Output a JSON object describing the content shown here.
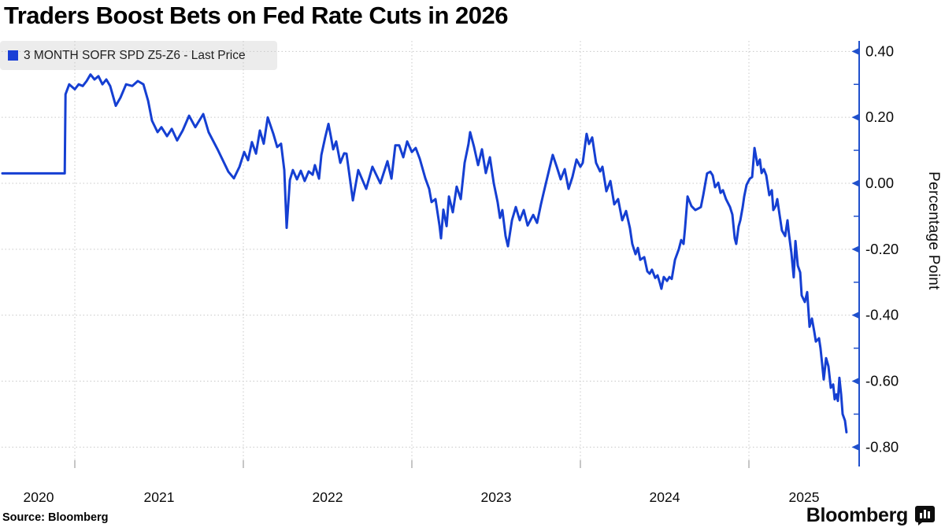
{
  "header": {
    "title": "Traders Boost Bets on Fed Rate Cuts in 2026"
  },
  "legend": {
    "label": "3 MONTH SOFR SPD Z5-Z6 - Last Price",
    "swatch_color": "#1a3fd6"
  },
  "footer": {
    "source": "Source: Bloomberg",
    "brand": "Bloomberg",
    "brand_icon": "bloomberg-bars-icon"
  },
  "colors": {
    "line": "#153fd2",
    "axis": "#2050cc",
    "grid": "#c8c8c8",
    "tick_label": "#0a0a0a",
    "x_tick": "#8c8c8c",
    "legend_bg": "#ececec"
  },
  "chart_data": {
    "type": "line",
    "title": "Traders Boost Bets on Fed Rate Cuts in 2026",
    "xlabel": "",
    "ylabel": "Percentage Point",
    "legend_position": "top-left",
    "grid": "dashed",
    "xlim": [
      2020.57,
      2025.654
    ],
    "ylim": [
      -0.85,
      0.45
    ],
    "x_tick_years": [
      2020,
      2021,
      2022,
      2023,
      2024,
      2025
    ],
    "y_ticks_major": [
      0.4,
      0.2,
      0.0,
      -0.2,
      -0.4,
      -0.6,
      -0.8
    ],
    "y_ticks_minor": [
      0.3,
      0.1,
      -0.1,
      -0.3,
      -0.5,
      -0.7
    ],
    "series": [
      {
        "name": "3 MONTH SOFR SPD Z5-Z6 - Last Price",
        "color": "#153fd2",
        "points": [
          [
            2020.57,
            0.03
          ],
          [
            2020.94,
            0.03
          ],
          [
            2020.945,
            0.27
          ],
          [
            2020.967,
            0.3
          ],
          [
            2021.0,
            0.285
          ],
          [
            2021.023,
            0.3
          ],
          [
            2021.047,
            0.295
          ],
          [
            2021.07,
            0.31
          ],
          [
            2021.093,
            0.33
          ],
          [
            2021.117,
            0.315
          ],
          [
            2021.14,
            0.325
          ],
          [
            2021.164,
            0.3
          ],
          [
            2021.187,
            0.315
          ],
          [
            2021.21,
            0.295
          ],
          [
            2021.243,
            0.235
          ],
          [
            2021.271,
            0.26
          ],
          [
            2021.304,
            0.3
          ],
          [
            2021.341,
            0.295
          ],
          [
            2021.374,
            0.31
          ],
          [
            2021.407,
            0.3
          ],
          [
            2021.435,
            0.25
          ],
          [
            2021.458,
            0.19
          ],
          [
            2021.491,
            0.155
          ],
          [
            2021.514,
            0.17
          ],
          [
            2021.547,
            0.143
          ],
          [
            2021.575,
            0.165
          ],
          [
            2021.607,
            0.13
          ],
          [
            2021.64,
            0.16
          ],
          [
            2021.678,
            0.205
          ],
          [
            2021.715,
            0.17
          ],
          [
            2021.762,
            0.21
          ],
          [
            2021.794,
            0.155
          ],
          [
            2021.85,
            0.1
          ],
          [
            2021.911,
            0.035
          ],
          [
            2021.944,
            0.015
          ],
          [
            2021.977,
            0.05
          ],
          [
            2022.005,
            0.095
          ],
          [
            2022.028,
            0.07
          ],
          [
            2022.051,
            0.125
          ],
          [
            2022.075,
            0.09
          ],
          [
            2022.098,
            0.16
          ],
          [
            2022.121,
            0.12
          ],
          [
            2022.145,
            0.2
          ],
          [
            2022.178,
            0.15
          ],
          [
            2022.201,
            0.11
          ],
          [
            2022.224,
            0.12
          ],
          [
            2022.243,
            0.04
          ],
          [
            2022.257,
            -0.135
          ],
          [
            2022.276,
            0.01
          ],
          [
            2022.294,
            0.04
          ],
          [
            2022.318,
            0.012
          ],
          [
            2022.341,
            0.038
          ],
          [
            2022.364,
            0.007
          ],
          [
            2022.388,
            0.036
          ],
          [
            2022.411,
            0.026
          ],
          [
            2022.425,
            0.055
          ],
          [
            2022.449,
            0.014
          ],
          [
            2022.463,
            0.086
          ],
          [
            2022.486,
            0.14
          ],
          [
            2022.505,
            0.18
          ],
          [
            2022.519,
            0.143
          ],
          [
            2022.533,
            0.103
          ],
          [
            2022.551,
            0.127
          ],
          [
            2022.575,
            0.062
          ],
          [
            2022.598,
            0.091
          ],
          [
            2022.612,
            0.09
          ],
          [
            2022.631,
            0.02
          ],
          [
            2022.65,
            -0.052
          ],
          [
            2022.682,
            0.04
          ],
          [
            2022.729,
            -0.017
          ],
          [
            2022.766,
            0.05
          ],
          [
            2022.813,
            0.0
          ],
          [
            2022.855,
            0.067
          ],
          [
            2022.879,
            0.014
          ],
          [
            2022.902,
            0.115
          ],
          [
            2022.925,
            0.115
          ],
          [
            2022.949,
            0.079
          ],
          [
            2022.972,
            0.127
          ],
          [
            2023.0,
            0.095
          ],
          [
            2023.023,
            0.107
          ],
          [
            2023.047,
            0.074
          ],
          [
            2023.08,
            0.015
          ],
          [
            2023.103,
            -0.017
          ],
          [
            2023.117,
            -0.057
          ],
          [
            2023.14,
            -0.048
          ],
          [
            2023.164,
            -0.128
          ],
          [
            2023.173,
            -0.167
          ],
          [
            2023.187,
            -0.08
          ],
          [
            2023.206,
            -0.13
          ],
          [
            2023.22,
            -0.04
          ],
          [
            2023.243,
            -0.088
          ],
          [
            2023.266,
            -0.01
          ],
          [
            2023.29,
            -0.048
          ],
          [
            2023.313,
            0.062
          ],
          [
            2023.336,
            0.119
          ],
          [
            2023.346,
            0.155
          ],
          [
            2023.369,
            0.11
          ],
          [
            2023.393,
            0.055
          ],
          [
            2023.416,
            0.103
          ],
          [
            2023.439,
            0.031
          ],
          [
            2023.463,
            0.079
          ],
          [
            2023.486,
            0.0
          ],
          [
            2023.509,
            -0.057
          ],
          [
            2023.523,
            -0.105
          ],
          [
            2023.537,
            -0.081
          ],
          [
            2023.556,
            -0.16
          ],
          [
            2023.57,
            -0.191
          ],
          [
            2023.594,
            -0.112
          ],
          [
            2023.617,
            -0.072
          ],
          [
            2023.64,
            -0.112
          ],
          [
            2023.664,
            -0.081
          ],
          [
            2023.687,
            -0.128
          ],
          [
            2023.72,
            -0.096
          ],
          [
            2023.743,
            -0.12
          ],
          [
            2023.766,
            -0.064
          ],
          [
            2023.78,
            -0.033
          ],
          [
            2023.813,
            0.038
          ],
          [
            2023.836,
            0.086
          ],
          [
            2023.86,
            0.05
          ],
          [
            2023.883,
            0.012
          ],
          [
            2023.907,
            0.043
          ],
          [
            2023.93,
            -0.017
          ],
          [
            2023.953,
            0.019
          ],
          [
            2023.977,
            0.072
          ],
          [
            2024.0,
            0.05
          ],
          [
            2024.014,
            0.062
          ],
          [
            2024.037,
            0.15
          ],
          [
            2024.051,
            0.119
          ],
          [
            2024.07,
            0.139
          ],
          [
            2024.093,
            0.062
          ],
          [
            2024.117,
            0.036
          ],
          [
            2024.131,
            0.05
          ],
          [
            2024.154,
            -0.024
          ],
          [
            2024.178,
            0.007
          ],
          [
            2024.201,
            -0.064
          ],
          [
            2024.224,
            -0.048
          ],
          [
            2024.248,
            -0.112
          ],
          [
            2024.271,
            -0.084
          ],
          [
            2024.294,
            -0.136
          ],
          [
            2024.308,
            -0.184
          ],
          [
            2024.327,
            -0.215
          ],
          [
            2024.341,
            -0.196
          ],
          [
            2024.355,
            -0.232
          ],
          [
            2024.379,
            -0.224
          ],
          [
            2024.397,
            -0.267
          ],
          [
            2024.411,
            -0.274
          ],
          [
            2024.425,
            -0.262
          ],
          [
            2024.444,
            -0.287
          ],
          [
            2024.458,
            -0.279
          ],
          [
            2024.472,
            -0.303
          ],
          [
            2024.481,
            -0.32
          ],
          [
            2024.495,
            -0.284
          ],
          [
            2024.514,
            -0.296
          ],
          [
            2024.528,
            -0.284
          ],
          [
            2024.542,
            -0.29
          ],
          [
            2024.561,
            -0.232
          ],
          [
            2024.584,
            -0.2
          ],
          [
            2024.598,
            -0.172
          ],
          [
            2024.612,
            -0.184
          ],
          [
            2024.621,
            -0.136
          ],
          [
            2024.636,
            -0.04
          ],
          [
            2024.659,
            -0.069
          ],
          [
            2024.682,
            -0.081
          ],
          [
            2024.701,
            -0.076
          ],
          [
            2024.715,
            -0.072
          ],
          [
            2024.729,
            -0.036
          ],
          [
            2024.752,
            0.03
          ],
          [
            2024.771,
            0.035
          ],
          [
            2024.785,
            0.024
          ],
          [
            2024.799,
            -0.012
          ],
          [
            2024.818,
            0.002
          ],
          [
            2024.832,
            -0.029
          ],
          [
            2024.846,
            -0.021
          ],
          [
            2024.864,
            -0.048
          ],
          [
            2024.888,
            -0.072
          ],
          [
            2024.902,
            -0.095
          ],
          [
            2024.916,
            -0.167
          ],
          [
            2024.925,
            -0.184
          ],
          [
            2024.939,
            -0.131
          ],
          [
            2024.949,
            -0.112
          ],
          [
            2024.963,
            -0.072
          ],
          [
            2024.972,
            -0.04
          ],
          [
            2024.986,
            -0.005
          ],
          [
            2025.005,
            0.014
          ],
          [
            2025.019,
            0.019
          ],
          [
            2025.033,
            0.107
          ],
          [
            2025.051,
            0.055
          ],
          [
            2025.065,
            0.072
          ],
          [
            2025.075,
            0.031
          ],
          [
            2025.089,
            0.043
          ],
          [
            2025.103,
            0.024
          ],
          [
            2025.121,
            -0.036
          ],
          [
            2025.136,
            -0.021
          ],
          [
            2025.145,
            -0.081
          ],
          [
            2025.159,
            -0.069
          ],
          [
            2025.168,
            -0.048
          ],
          [
            2025.182,
            -0.095
          ],
          [
            2025.196,
            -0.143
          ],
          [
            2025.215,
            -0.16
          ],
          [
            2025.229,
            -0.112
          ],
          [
            2025.238,
            -0.155
          ],
          [
            2025.252,
            -0.21
          ],
          [
            2025.266,
            -0.285
          ],
          [
            2025.276,
            -0.175
          ],
          [
            2025.29,
            -0.25
          ],
          [
            2025.304,
            -0.27
          ],
          [
            2025.313,
            -0.34
          ],
          [
            2025.332,
            -0.36
          ],
          [
            2025.346,
            -0.33
          ],
          [
            2025.36,
            -0.435
          ],
          [
            2025.374,
            -0.41
          ],
          [
            2025.388,
            -0.45
          ],
          [
            2025.397,
            -0.48
          ],
          [
            2025.416,
            -0.47
          ],
          [
            2025.425,
            -0.5
          ],
          [
            2025.435,
            -0.55
          ],
          [
            2025.444,
            -0.595
          ],
          [
            2025.458,
            -0.53
          ],
          [
            2025.472,
            -0.555
          ],
          [
            2025.486,
            -0.62
          ],
          [
            2025.5,
            -0.61
          ],
          [
            2025.509,
            -0.655
          ],
          [
            2025.519,
            -0.64
          ],
          [
            2025.528,
            -0.66
          ],
          [
            2025.537,
            -0.59
          ],
          [
            2025.547,
            -0.64
          ],
          [
            2025.556,
            -0.7
          ],
          [
            2025.57,
            -0.72
          ],
          [
            2025.579,
            -0.755
          ]
        ]
      }
    ]
  }
}
